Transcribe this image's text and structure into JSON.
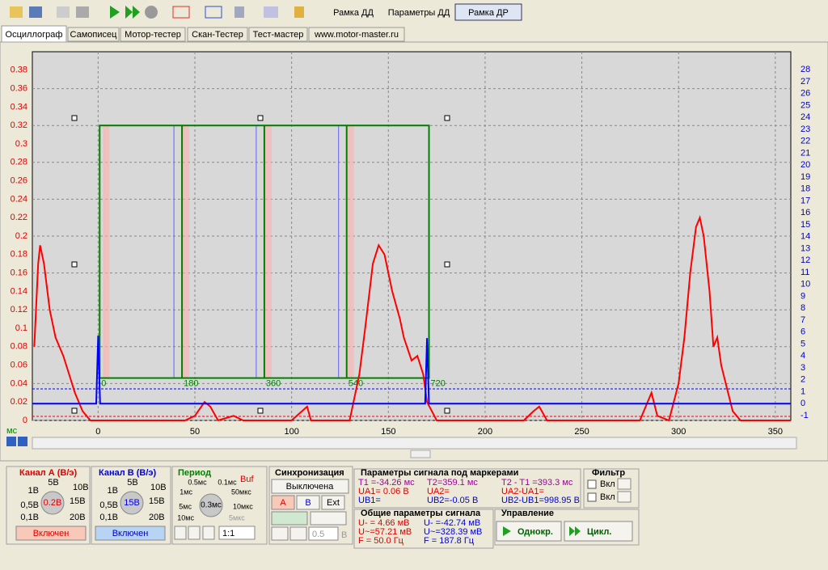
{
  "toolbar": {
    "tabs": [
      "Рамка ДД",
      "Параметры ДД",
      "Рамка ДР"
    ]
  },
  "tabs": [
    "Осциллограф",
    "Самописец",
    "Мотор-тестер",
    "Скан-Тестер",
    "Тест-мастер",
    "www.motor-master.ru"
  ],
  "chart_data": {
    "type": "line",
    "x_unit": "мс",
    "xlim": [
      -34,
      358
    ],
    "xticks": [
      0,
      50,
      100,
      150,
      200,
      250,
      300,
      350
    ],
    "ylim": [
      0,
      0.4
    ],
    "yticks": [
      0,
      0.02,
      0.04,
      0.06,
      0.08,
      0.1,
      0.12,
      0.14,
      0.16,
      0.18,
      0.2,
      0.22,
      0.24,
      0.26,
      0.28,
      0.3,
      0.32,
      0.34,
      0.36,
      0.38
    ],
    "y2lim": [
      -1.4,
      29.5
    ],
    "y2ticks": [
      -1,
      0,
      1,
      2,
      3,
      4,
      5,
      6,
      7,
      8,
      9,
      10,
      11,
      12,
      13,
      14,
      15,
      16,
      17,
      18,
      19,
      20,
      21,
      22,
      23,
      24,
      25,
      26,
      27,
      28
    ],
    "grid": true,
    "series": [
      {
        "color": "#ff0000",
        "x": [
          -33,
          -31,
          -30,
          -28,
          -25,
          -22,
          -18,
          -15,
          -12,
          -8,
          -4,
          0,
          45,
          50,
          55,
          58,
          62,
          70,
          75,
          100,
          108,
          110,
          130,
          135,
          138,
          142,
          145,
          148,
          152,
          156,
          158,
          162,
          165,
          168,
          170,
          175,
          220,
          225,
          228,
          232,
          250,
          280,
          284,
          286,
          289,
          295,
          300,
          303,
          306,
          309,
          311,
          313,
          316,
          318,
          320,
          322,
          325,
          328,
          332,
          358
        ],
        "values": [
          0.08,
          0.17,
          0.19,
          0.17,
          0.12,
          0.09,
          0.07,
          0.05,
          0.03,
          0.01,
          0,
          0,
          0,
          0.005,
          0.02,
          0.015,
          0,
          0.005,
          0,
          0,
          0.015,
          0,
          0,
          0.05,
          0.1,
          0.17,
          0.19,
          0.18,
          0.14,
          0.11,
          0.09,
          0.065,
          0.07,
          0.05,
          0.02,
          0,
          0,
          0.01,
          0.015,
          0,
          0,
          0,
          0.02,
          0.03,
          0.005,
          0,
          0.04,
          0.09,
          0.16,
          0.21,
          0.22,
          0.2,
          0.14,
          0.08,
          0.09,
          0.06,
          0.035,
          0.01,
          0,
          0
        ]
      },
      {
        "color": "#0000ff",
        "axis": "y2",
        "x": [
          -34,
          -1,
          0,
          1,
          169,
          170,
          171,
          358
        ],
        "values": [
          0,
          0,
          5.7,
          0,
          0,
          5.5,
          0,
          0
        ]
      }
    ],
    "frame": {
      "color": "#008000",
      "xlim": [
        0.8,
        171
      ],
      "ylim": [
        0.046,
        0.32
      ],
      "labels": [
        0,
        180,
        360,
        540,
        720
      ]
    }
  },
  "channel_a": {
    "title": "Канал А (В/э)",
    "dial_labels": [
      "5В",
      "10В",
      "1В",
      "15В",
      "0,5В",
      "0,1В",
      "20В"
    ],
    "value": "0.2В",
    "button": "Включен"
  },
  "channel_b": {
    "title": "Канал В (В/э)",
    "dial_labels": [
      "5В",
      "10В",
      "1В",
      "15В",
      "0,5В",
      "0,1В",
      "20В"
    ],
    "value": "15В",
    "button": "Включен"
  },
  "period": {
    "title": "Период",
    "buf": "Buf",
    "dial_labels": [
      "0.5мс",
      "0.1мс",
      "1мс",
      "50мкс",
      "5мс",
      "10мкс",
      "10мс",
      "5мкс"
    ],
    "value": "0.3мс",
    "ratio": "1:1"
  },
  "sync": {
    "title": "Синхронизация",
    "state": "Выключена",
    "buttons": [
      "A",
      "B",
      "Ext"
    ],
    "level": "0.5",
    "level_unit": "В"
  },
  "markers": {
    "title": "Параметры сигнала под маркерами",
    "columns": [
      [
        "T1 =-34.26 мс",
        "UA1= 0.06 В",
        "UB1="
      ],
      [
        "T2=359.1 мс",
        "UA2=",
        "UB2=-0.05 В"
      ],
      [
        "T2 - T1 =393.3 мс",
        "UA2-UA1=",
        "UB2-UB1=998.95 В"
      ]
    ]
  },
  "filter": {
    "title": "Фильтр",
    "items": [
      "Вкл",
      "Вкл"
    ]
  },
  "general": {
    "title": "Общие параметры сигнала",
    "a": [
      "U- = 4.66 мВ",
      "U~=57.21 мВ",
      "F = 50.0 Гц"
    ],
    "b": [
      "U- =-42.74 мВ",
      "U~=328.39 мВ",
      "F = 187.8 Гц"
    ]
  },
  "control": {
    "title": "Управление",
    "buttons": [
      "Однокр.",
      "Цикл."
    ]
  }
}
